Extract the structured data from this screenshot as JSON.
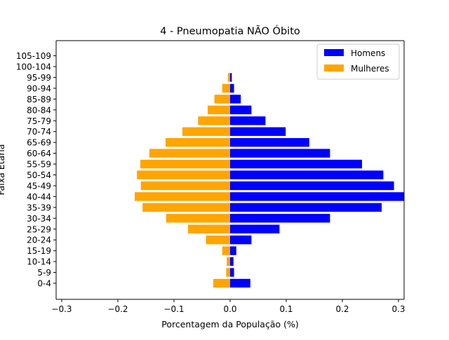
{
  "chart_data": {
    "type": "bar",
    "orientation": "horizontal",
    "title": "4 - Pneumopatia NÃO Óbito",
    "xlabel": "Porcentagem da População (%)",
    "ylabel": "Faixa Etária",
    "xlim": [
      -0.31,
      0.31
    ],
    "xticks": [
      -0.3,
      -0.2,
      -0.1,
      0.0,
      0.1,
      0.2,
      0.3
    ],
    "xtick_labels": [
      "−0.3",
      "−0.2",
      "−0.1",
      "0.0",
      "0.1",
      "0.2",
      "0.3"
    ],
    "grid": false,
    "legend_position": "top-right",
    "categories": [
      "0-4",
      "5-9",
      "10-14",
      "15-19",
      "20-24",
      "25-29",
      "30-34",
      "35-39",
      "40-44",
      "45-49",
      "50-54",
      "55-59",
      "60-64",
      "65-69",
      "70-74",
      "75-79",
      "80-84",
      "85-89",
      "90-94",
      "95-99",
      "100-104",
      "105-109"
    ],
    "series": [
      {
        "name": "Homens",
        "color": "#0000ff",
        "values": [
          0.036,
          0.007,
          0.006,
          0.011,
          0.038,
          0.088,
          0.178,
          0.27,
          0.31,
          0.292,
          0.273,
          0.235,
          0.178,
          0.141,
          0.099,
          0.063,
          0.038,
          0.019,
          0.007,
          0.003,
          0.0,
          0.0
        ]
      },
      {
        "name": "Mulheres",
        "color": "#ffa500",
        "values": [
          -0.03,
          -0.007,
          -0.006,
          -0.014,
          -0.043,
          -0.075,
          -0.114,
          -0.156,
          -0.17,
          -0.159,
          -0.166,
          -0.16,
          -0.144,
          -0.115,
          -0.085,
          -0.057,
          -0.04,
          -0.028,
          -0.014,
          -0.004,
          0.0,
          0.0
        ]
      }
    ]
  }
}
